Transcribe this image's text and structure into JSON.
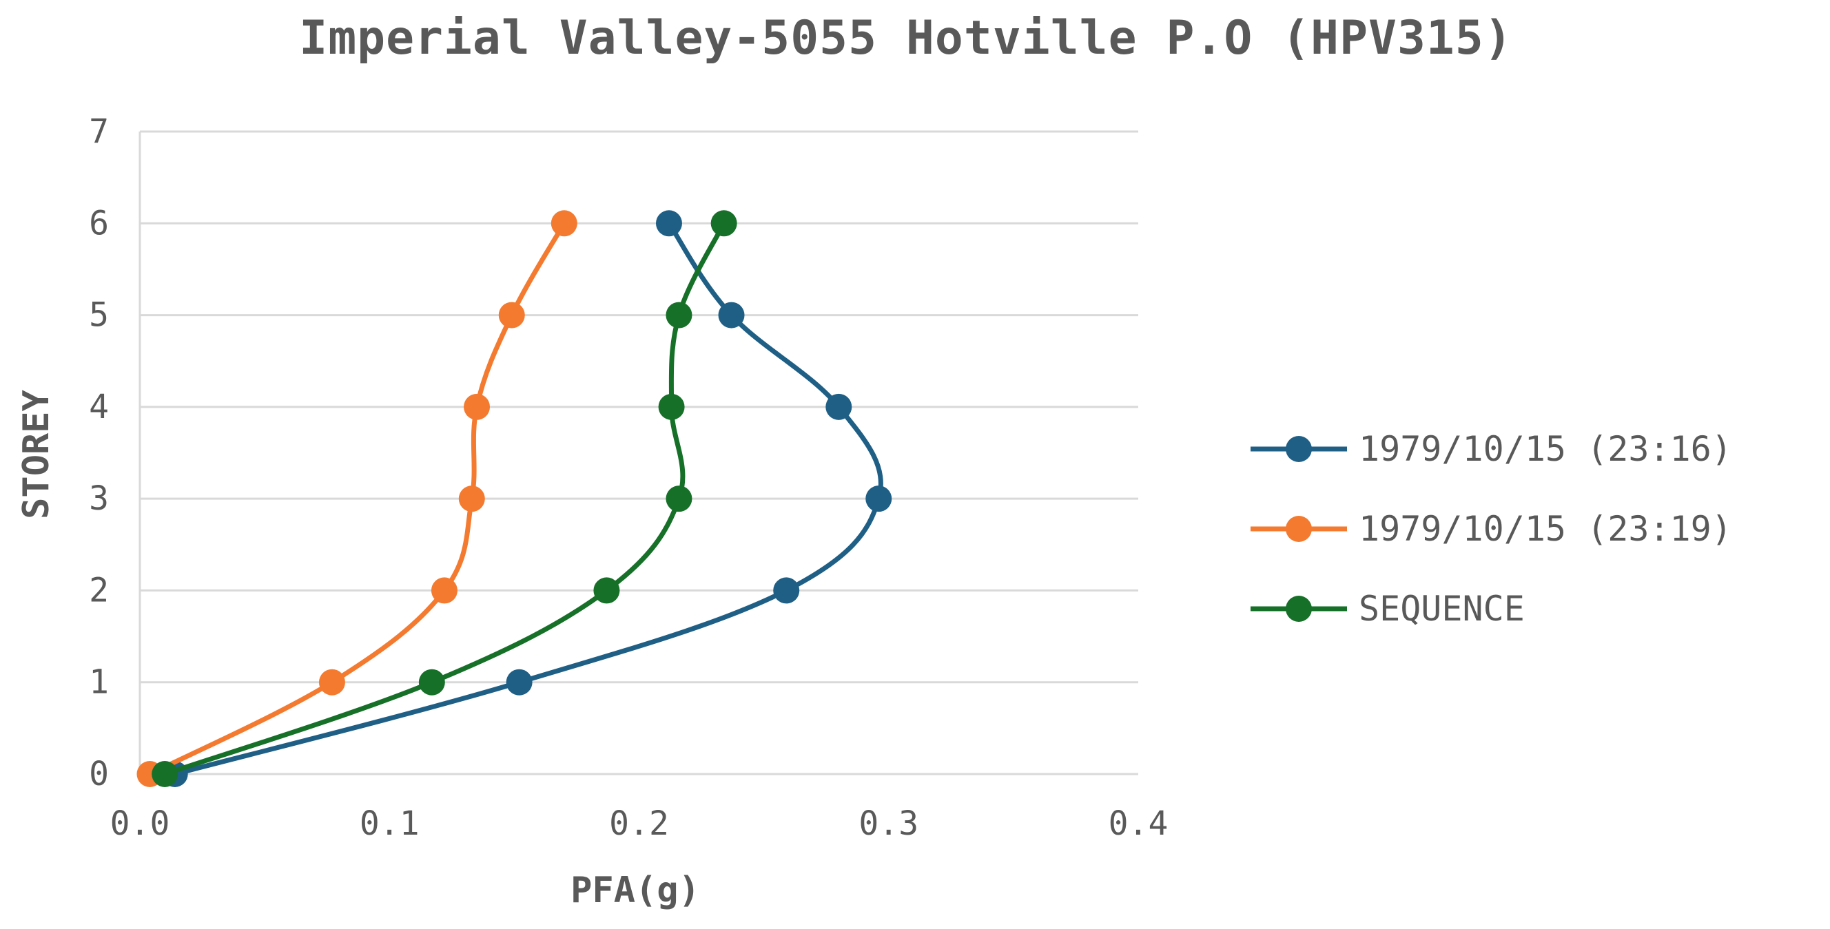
{
  "chart_data": {
    "type": "line",
    "title": "Imperial Valley-5055 Hotville P.O (HPV315)",
    "xlabel": "PFA(g)",
    "ylabel": "STOREY",
    "xlim": [
      0,
      0.4
    ],
    "ylim": [
      0,
      7
    ],
    "xticks": [
      "0.0",
      "0.1",
      "0.2",
      "0.3",
      "0.4"
    ],
    "yticks": [
      "0",
      "1",
      "2",
      "3",
      "4",
      "5",
      "6",
      "7"
    ],
    "grid": "horizontal",
    "legend_position": "right",
    "series": [
      {
        "name": "1979/10/15 (23:16)",
        "color": "#1f5f86",
        "points": [
          [
            0.014,
            0
          ],
          [
            0.152,
            1
          ],
          [
            0.259,
            2
          ],
          [
            0.296,
            3
          ],
          [
            0.28,
            4
          ],
          [
            0.237,
            5
          ],
          [
            0.212,
            6
          ]
        ]
      },
      {
        "name": "1979/10/15 (23:19)",
        "color": "#f47a2f",
        "points": [
          [
            0.004,
            0
          ],
          [
            0.077,
            1
          ],
          [
            0.122,
            2
          ],
          [
            0.133,
            3
          ],
          [
            0.135,
            4
          ],
          [
            0.149,
            5
          ],
          [
            0.17,
            6
          ]
        ]
      },
      {
        "name": "SEQUENCE",
        "color": "#167028",
        "points": [
          [
            0.01,
            0
          ],
          [
            0.117,
            1
          ],
          [
            0.187,
            2
          ],
          [
            0.216,
            3
          ],
          [
            0.213,
            4
          ],
          [
            0.216,
            5
          ],
          [
            0.234,
            6
          ]
        ]
      }
    ]
  }
}
